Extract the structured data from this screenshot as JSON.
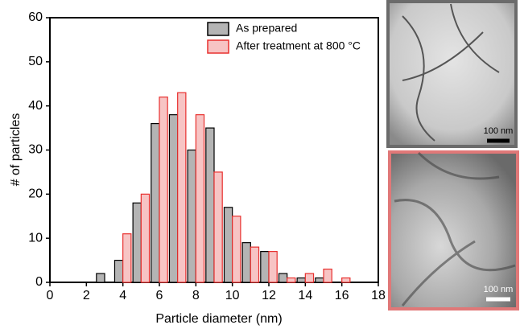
{
  "chart_data": {
    "type": "bar",
    "xlabel": "Particle diameter (nm)",
    "ylabel": "# of particles",
    "x": [
      3,
      4,
      5,
      6,
      7,
      8,
      9,
      10,
      11,
      12,
      13,
      14,
      15,
      16
    ],
    "series": [
      {
        "name": "As prepared",
        "color": "#b4b4b4",
        "edge": "#000000",
        "values": [
          2,
          5,
          18,
          36,
          38,
          30,
          35,
          17,
          9,
          7,
          2,
          1,
          1,
          0
        ]
      },
      {
        "name": "After treatment at 800 °C",
        "color": "#f7c4c4",
        "edge": "#e8302e",
        "values": [
          0,
          11,
          20,
          42,
          43,
          38,
          25,
          15,
          8,
          7,
          1,
          2,
          3,
          1
        ]
      }
    ],
    "xlim": [
      0,
      18
    ],
    "xticks": [
      0,
      2,
      4,
      6,
      8,
      10,
      12,
      14,
      16,
      18
    ],
    "ylim": [
      0,
      60
    ],
    "yticks": [
      0,
      10,
      20,
      30,
      40,
      50,
      60
    ],
    "legend": "upper right"
  },
  "images": [
    {
      "scale_bar": "100 nm"
    },
    {
      "scale_bar": "100 nm"
    }
  ]
}
